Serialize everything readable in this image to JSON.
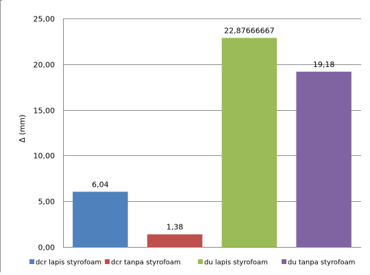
{
  "chart_data": {
    "type": "bar",
    "categories": [
      "dcr lapis styrofoam",
      "dcr tanpa styrofoam",
      "du lapis styrofoam",
      "du tanpa styrofoam"
    ],
    "values": [
      6.04,
      1.38,
      22.87666667,
      19.18
    ],
    "data_labels": [
      "6,04",
      "1,38",
      "22,87666667",
      "19,18"
    ],
    "colors": [
      "#4f81bd",
      "#c0504d",
      "#9bbb59",
      "#8064a2"
    ],
    "ylabel": "Δ (mm)",
    "ylim": [
      0,
      25
    ],
    "yticks": [
      "0,00",
      "5,00",
      "10,00",
      "15,00",
      "20,00",
      "25,00"
    ],
    "grid": true,
    "legend_position": "bottom",
    "legend": [
      "dcr lapis styrofoam",
      "dcr tanpa styrofoam",
      "du lapis styrofoam",
      "du tanpa styrofoam"
    ]
  }
}
